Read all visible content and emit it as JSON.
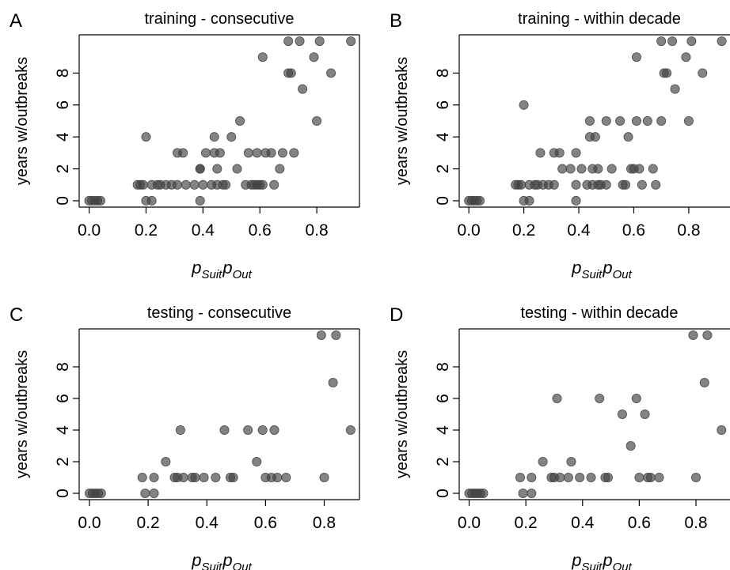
{
  "chart_data": [
    {
      "type": "scatter",
      "panel_label": "A",
      "title": "training - consecutive",
      "xlabel": {
        "base": "p",
        "sub1": "Suit",
        "mid": "p",
        "sub2": "Out"
      },
      "ylabel": "years w/outbreaks",
      "x_ticks": [
        "0.0",
        "0.2",
        "0.4",
        "0.6",
        "0.8"
      ],
      "y_ticks": [
        "0",
        "2",
        "4",
        "6",
        "8"
      ],
      "xlim": [
        -0.035,
        0.95
      ],
      "ylim": [
        -0.4,
        10.4
      ],
      "point_color": "#404040",
      "point_opacity": 0.65,
      "points": [
        [
          0.0,
          0
        ],
        [
          0.01,
          0
        ],
        [
          0.02,
          0
        ],
        [
          0.03,
          0
        ],
        [
          0.04,
          0
        ],
        [
          0.17,
          1
        ],
        [
          0.18,
          1
        ],
        [
          0.19,
          1
        ],
        [
          0.2,
          4
        ],
        [
          0.2,
          0
        ],
        [
          0.22,
          1
        ],
        [
          0.22,
          0
        ],
        [
          0.24,
          1
        ],
        [
          0.25,
          1
        ],
        [
          0.27,
          1
        ],
        [
          0.29,
          1
        ],
        [
          0.31,
          1
        ],
        [
          0.31,
          3
        ],
        [
          0.33,
          3
        ],
        [
          0.34,
          1
        ],
        [
          0.37,
          1
        ],
        [
          0.39,
          2
        ],
        [
          0.39,
          2
        ],
        [
          0.39,
          0
        ],
        [
          0.4,
          1
        ],
        [
          0.41,
          3
        ],
        [
          0.43,
          1
        ],
        [
          0.44,
          4
        ],
        [
          0.44,
          3
        ],
        [
          0.45,
          2
        ],
        [
          0.45,
          1
        ],
        [
          0.46,
          3
        ],
        [
          0.47,
          1
        ],
        [
          0.48,
          1
        ],
        [
          0.5,
          4
        ],
        [
          0.52,
          2
        ],
        [
          0.53,
          5
        ],
        [
          0.55,
          1
        ],
        [
          0.56,
          3
        ],
        [
          0.57,
          1
        ],
        [
          0.58,
          1
        ],
        [
          0.59,
          3
        ],
        [
          0.59,
          1
        ],
        [
          0.6,
          1
        ],
        [
          0.61,
          9
        ],
        [
          0.61,
          1
        ],
        [
          0.62,
          3
        ],
        [
          0.64,
          3
        ],
        [
          0.65,
          1
        ],
        [
          0.67,
          2
        ],
        [
          0.68,
          3
        ],
        [
          0.7,
          10
        ],
        [
          0.7,
          8
        ],
        [
          0.71,
          8
        ],
        [
          0.72,
          3
        ],
        [
          0.74,
          10
        ],
        [
          0.75,
          7
        ],
        [
          0.79,
          9
        ],
        [
          0.8,
          5
        ],
        [
          0.81,
          10
        ],
        [
          0.85,
          8
        ],
        [
          0.92,
          10
        ]
      ]
    },
    {
      "type": "scatter",
      "panel_label": "B",
      "title": "training - within decade",
      "xlabel": {
        "base": "p",
        "sub1": "Suit",
        "mid": "p",
        "sub2": "Out"
      },
      "ylabel": "years w/outbreaks",
      "x_ticks": [
        "0.0",
        "0.2",
        "0.4",
        "0.6",
        "0.8"
      ],
      "y_ticks": [
        "0",
        "2",
        "4",
        "6",
        "8"
      ],
      "xlim": [
        -0.035,
        0.95
      ],
      "ylim": [
        -0.4,
        10.4
      ],
      "point_color": "#404040",
      "point_opacity": 0.65,
      "points": [
        [
          0.0,
          0
        ],
        [
          0.01,
          0
        ],
        [
          0.02,
          0
        ],
        [
          0.03,
          0
        ],
        [
          0.04,
          0
        ],
        [
          0.17,
          1
        ],
        [
          0.18,
          1
        ],
        [
          0.19,
          1
        ],
        [
          0.2,
          0
        ],
        [
          0.2,
          6
        ],
        [
          0.22,
          1
        ],
        [
          0.22,
          0
        ],
        [
          0.24,
          1
        ],
        [
          0.25,
          1
        ],
        [
          0.26,
          3
        ],
        [
          0.27,
          1
        ],
        [
          0.29,
          1
        ],
        [
          0.31,
          1
        ],
        [
          0.31,
          3
        ],
        [
          0.33,
          3
        ],
        [
          0.34,
          2
        ],
        [
          0.37,
          2
        ],
        [
          0.39,
          0
        ],
        [
          0.39,
          1
        ],
        [
          0.39,
          3
        ],
        [
          0.41,
          2
        ],
        [
          0.43,
          1
        ],
        [
          0.44,
          4
        ],
        [
          0.44,
          5
        ],
        [
          0.45,
          1
        ],
        [
          0.45,
          2
        ],
        [
          0.46,
          4
        ],
        [
          0.47,
          1
        ],
        [
          0.47,
          2
        ],
        [
          0.48,
          1
        ],
        [
          0.5,
          1
        ],
        [
          0.5,
          5
        ],
        [
          0.52,
          2
        ],
        [
          0.55,
          5
        ],
        [
          0.56,
          1
        ],
        [
          0.57,
          1
        ],
        [
          0.58,
          4
        ],
        [
          0.59,
          2
        ],
        [
          0.6,
          2
        ],
        [
          0.61,
          9
        ],
        [
          0.61,
          5
        ],
        [
          0.62,
          2
        ],
        [
          0.63,
          1
        ],
        [
          0.65,
          5
        ],
        [
          0.67,
          2
        ],
        [
          0.68,
          1
        ],
        [
          0.7,
          5
        ],
        [
          0.7,
          10
        ],
        [
          0.71,
          8
        ],
        [
          0.72,
          8
        ],
        [
          0.74,
          10
        ],
        [
          0.75,
          7
        ],
        [
          0.79,
          9
        ],
        [
          0.8,
          5
        ],
        [
          0.81,
          10
        ],
        [
          0.85,
          8
        ],
        [
          0.92,
          10
        ]
      ]
    },
    {
      "type": "scatter",
      "panel_label": "C",
      "title": "testing - consecutive",
      "xlabel": {
        "base": "p",
        "sub1": "Suit",
        "mid": "p",
        "sub2": "Out"
      },
      "ylabel": "years w/outbreaks",
      "x_ticks": [
        "0.0",
        "0.2",
        "0.4",
        "0.6",
        "0.8"
      ],
      "y_ticks": [
        "0",
        "2",
        "4",
        "6",
        "8"
      ],
      "xlim": [
        -0.035,
        0.92
      ],
      "ylim": [
        -0.4,
        10.4
      ],
      "point_color": "#404040",
      "point_opacity": 0.65,
      "points": [
        [
          0.0,
          0
        ],
        [
          0.01,
          0
        ],
        [
          0.02,
          0
        ],
        [
          0.03,
          0
        ],
        [
          0.04,
          0
        ],
        [
          0.18,
          1
        ],
        [
          0.19,
          0
        ],
        [
          0.22,
          1
        ],
        [
          0.22,
          0
        ],
        [
          0.26,
          2
        ],
        [
          0.29,
          1
        ],
        [
          0.3,
          1
        ],
        [
          0.31,
          4
        ],
        [
          0.32,
          1
        ],
        [
          0.35,
          1
        ],
        [
          0.36,
          1
        ],
        [
          0.39,
          1
        ],
        [
          0.43,
          1
        ],
        [
          0.46,
          4
        ],
        [
          0.48,
          1
        ],
        [
          0.49,
          1
        ],
        [
          0.54,
          4
        ],
        [
          0.57,
          2
        ],
        [
          0.59,
          4
        ],
        [
          0.6,
          1
        ],
        [
          0.62,
          1
        ],
        [
          0.63,
          4
        ],
        [
          0.64,
          1
        ],
        [
          0.67,
          1
        ],
        [
          0.79,
          10
        ],
        [
          0.8,
          1
        ],
        [
          0.83,
          7
        ],
        [
          0.84,
          10
        ],
        [
          0.89,
          4
        ]
      ]
    },
    {
      "type": "scatter",
      "panel_label": "D",
      "title": "testing - within decade",
      "xlabel": {
        "base": "p",
        "sub1": "Suit",
        "mid": "p",
        "sub2": "Out"
      },
      "ylabel": "years w/outbreaks",
      "x_ticks": [
        "0.0",
        "0.2",
        "0.4",
        "0.6",
        "0.8"
      ],
      "y_ticks": [
        "0",
        "2",
        "4",
        "6",
        "8"
      ],
      "xlim": [
        -0.035,
        0.92
      ],
      "ylim": [
        -0.4,
        10.4
      ],
      "point_color": "#404040",
      "point_opacity": 0.65,
      "points": [
        [
          0.0,
          0
        ],
        [
          0.01,
          0
        ],
        [
          0.02,
          0
        ],
        [
          0.03,
          0
        ],
        [
          0.04,
          0
        ],
        [
          0.05,
          0
        ],
        [
          0.18,
          1
        ],
        [
          0.19,
          0
        ],
        [
          0.22,
          1
        ],
        [
          0.22,
          0
        ],
        [
          0.26,
          2
        ],
        [
          0.29,
          1
        ],
        [
          0.3,
          1
        ],
        [
          0.31,
          6
        ],
        [
          0.32,
          1
        ],
        [
          0.35,
          1
        ],
        [
          0.36,
          2
        ],
        [
          0.39,
          1
        ],
        [
          0.43,
          1
        ],
        [
          0.46,
          6
        ],
        [
          0.48,
          1
        ],
        [
          0.49,
          1
        ],
        [
          0.54,
          5
        ],
        [
          0.57,
          3
        ],
        [
          0.59,
          6
        ],
        [
          0.6,
          1
        ],
        [
          0.62,
          5
        ],
        [
          0.63,
          1
        ],
        [
          0.64,
          1
        ],
        [
          0.67,
          1
        ],
        [
          0.79,
          10
        ],
        [
          0.8,
          1
        ],
        [
          0.83,
          7
        ],
        [
          0.84,
          10
        ],
        [
          0.89,
          4
        ]
      ]
    }
  ]
}
